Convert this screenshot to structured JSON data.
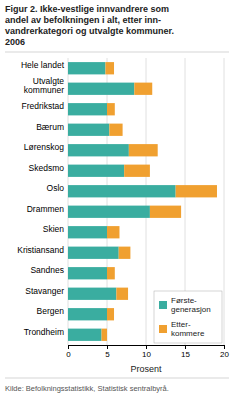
{
  "chart_data": {
    "type": "bar",
    "orientation": "horizontal",
    "stacked": true,
    "title": "Figur 2. Ikke-vestlige innvandrere som\nandel av befolkningen i alt, etter inn-\nvandrerkategori og utvalgte kommuner.\n2006",
    "categories": [
      "Hele landet",
      "Utvalgte\nkommuner",
      "Fredrikstad",
      "Bærum",
      "Lørenskog",
      "Skedsmo",
      "Oslo",
      "Drammen",
      "Skien",
      "Kristiansand",
      "Sandnes",
      "Stavanger",
      "Bergen",
      "Trondheim"
    ],
    "series": [
      {
        "name": "Første-\ngenerasjon",
        "color": "#3aada0",
        "values": [
          4.8,
          8.5,
          5.0,
          5.3,
          7.8,
          7.2,
          13.8,
          10.5,
          5.0,
          6.5,
          5.0,
          6.2,
          5.0,
          4.3
        ]
      },
      {
        "name": "Etter-\nkommere",
        "color": "#f0a030",
        "values": [
          1.1,
          2.3,
          1.0,
          1.7,
          3.7,
          3.3,
          5.3,
          4.0,
          1.6,
          1.5,
          1.0,
          1.5,
          0.9,
          0.7
        ]
      }
    ],
    "x_label": "Prosent",
    "xlim": [
      0,
      20
    ],
    "xticks": [
      0,
      5,
      10,
      15,
      20
    ],
    "grid": true,
    "legend": "lower right",
    "annotations": [
      "Kilde: Befolkningsstatistikk, Statistisk sentralbyrå."
    ]
  }
}
